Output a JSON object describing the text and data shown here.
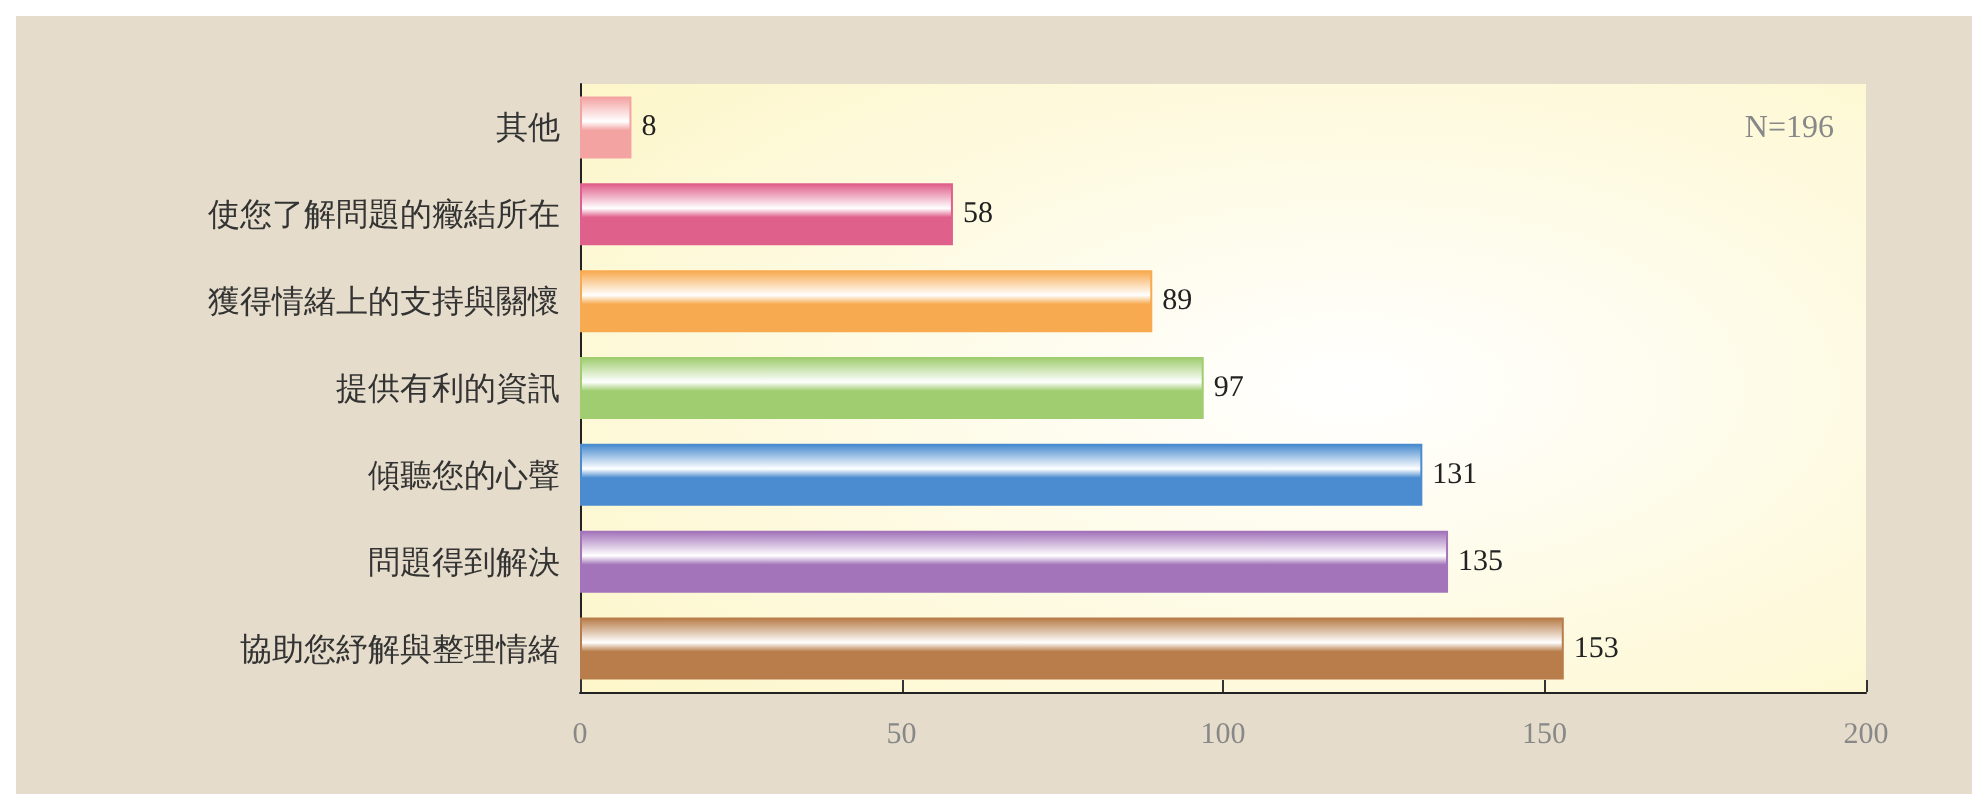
{
  "chart_data": {
    "type": "bar",
    "orientation": "horizontal",
    "categories": [
      "其他",
      "使您了解問題的癥結所在",
      "獲得情緒上的支持與關懷",
      "提供有利的資訊",
      "傾聽您的心聲",
      "問題得到解決",
      "協助您紓解與整理情緒"
    ],
    "values": [
      8,
      58,
      89,
      97,
      131,
      135,
      153
    ],
    "colors": [
      "#f4a3a3",
      "#e0608c",
      "#f8aa50",
      "#9fcd70",
      "#4a8ccf",
      "#a374ba",
      "#b87d4a"
    ],
    "xlim": [
      0,
      200
    ],
    "xticks": [
      0,
      50,
      100,
      150,
      200
    ],
    "data_labels": true,
    "annotations": [
      "N=196"
    ]
  }
}
